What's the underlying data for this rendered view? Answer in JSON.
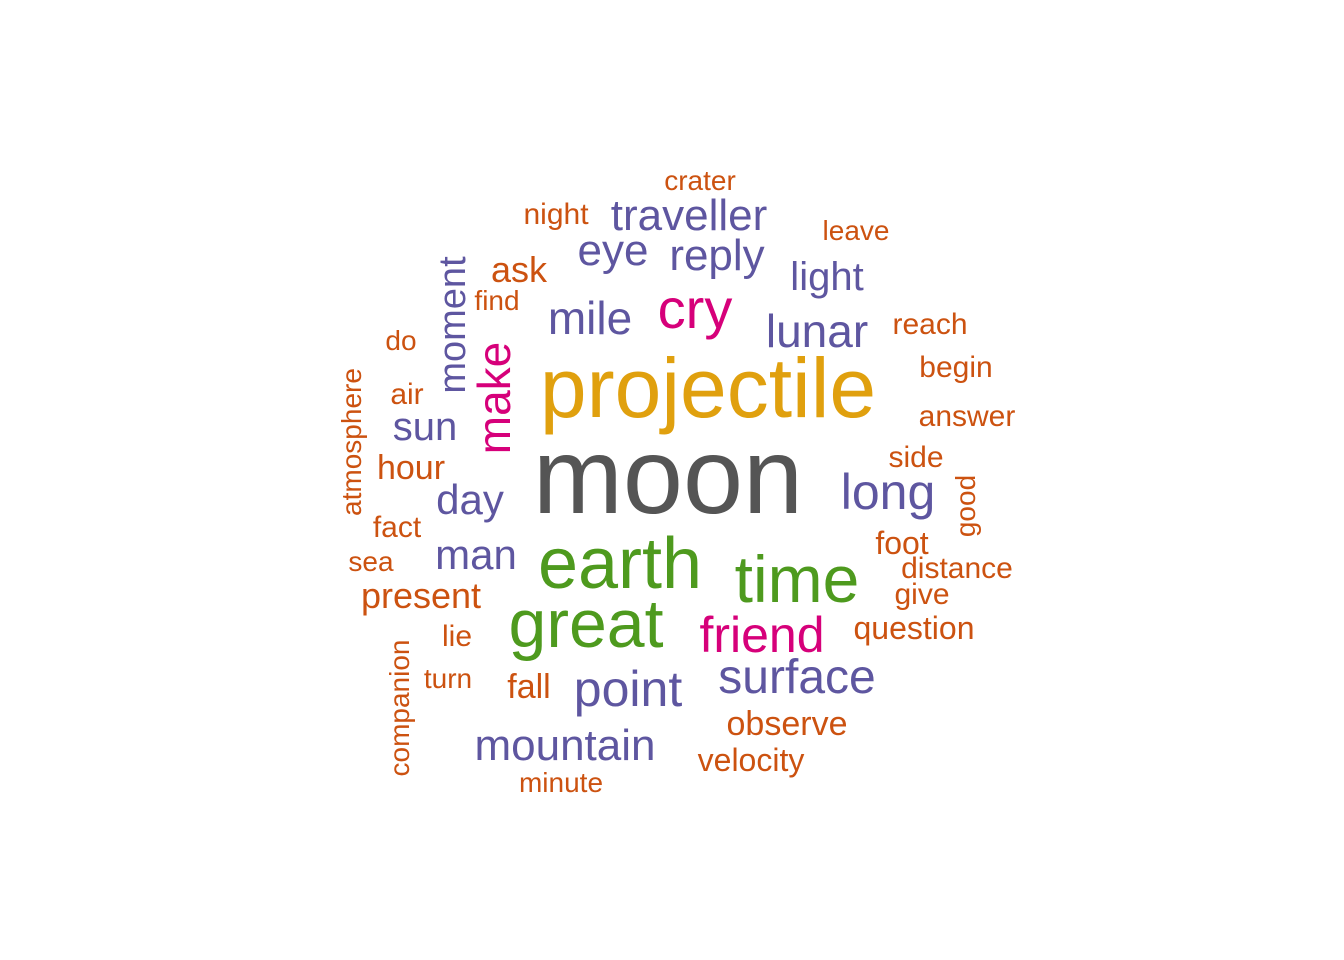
{
  "chart_data": {
    "type": "wordcloud",
    "palette": {
      "gray": "#555555",
      "gold": "#E0A00E",
      "green": "#4E9A1E",
      "magenta": "#D6007A",
      "purple": "#5E56A0",
      "orange": "#CC5210"
    },
    "words": [
      {
        "text": "moon",
        "color": "gray",
        "vertical": false
      },
      {
        "text": "projectile",
        "color": "gold",
        "vertical": false
      },
      {
        "text": "earth",
        "color": "green",
        "vertical": false
      },
      {
        "text": "great",
        "color": "green",
        "vertical": false
      },
      {
        "text": "time",
        "color": "green",
        "vertical": false
      },
      {
        "text": "cry",
        "color": "magenta",
        "vertical": false
      },
      {
        "text": "make",
        "color": "magenta",
        "vertical": true
      },
      {
        "text": "friend",
        "color": "magenta",
        "vertical": false
      },
      {
        "text": "traveller",
        "color": "purple",
        "vertical": false
      },
      {
        "text": "eye",
        "color": "purple",
        "vertical": false
      },
      {
        "text": "reply",
        "color": "purple",
        "vertical": false
      },
      {
        "text": "light",
        "color": "purple",
        "vertical": false
      },
      {
        "text": "mile",
        "color": "purple",
        "vertical": false
      },
      {
        "text": "lunar",
        "color": "purple",
        "vertical": false
      },
      {
        "text": "moment",
        "color": "purple",
        "vertical": true
      },
      {
        "text": "sun",
        "color": "purple",
        "vertical": false
      },
      {
        "text": "day",
        "color": "purple",
        "vertical": false
      },
      {
        "text": "long",
        "color": "purple",
        "vertical": false
      },
      {
        "text": "man",
        "color": "purple",
        "vertical": false
      },
      {
        "text": "surface",
        "color": "purple",
        "vertical": false
      },
      {
        "text": "point",
        "color": "purple",
        "vertical": false
      },
      {
        "text": "mountain",
        "color": "purple",
        "vertical": false
      },
      {
        "text": "crater",
        "color": "orange",
        "vertical": false
      },
      {
        "text": "night",
        "color": "orange",
        "vertical": false
      },
      {
        "text": "leave",
        "color": "orange",
        "vertical": false
      },
      {
        "text": "ask",
        "color": "orange",
        "vertical": false
      },
      {
        "text": "find",
        "color": "orange",
        "vertical": false
      },
      {
        "text": "do",
        "color": "orange",
        "vertical": false
      },
      {
        "text": "reach",
        "color": "orange",
        "vertical": false
      },
      {
        "text": "begin",
        "color": "orange",
        "vertical": false
      },
      {
        "text": "air",
        "color": "orange",
        "vertical": false
      },
      {
        "text": "atmosphere",
        "color": "orange",
        "vertical": true
      },
      {
        "text": "answer",
        "color": "orange",
        "vertical": false
      },
      {
        "text": "hour",
        "color": "orange",
        "vertical": false
      },
      {
        "text": "side",
        "color": "orange",
        "vertical": false
      },
      {
        "text": "good",
        "color": "orange",
        "vertical": true
      },
      {
        "text": "fact",
        "color": "orange",
        "vertical": false
      },
      {
        "text": "foot",
        "color": "orange",
        "vertical": false
      },
      {
        "text": "sea",
        "color": "orange",
        "vertical": false
      },
      {
        "text": "distance",
        "color": "orange",
        "vertical": false
      },
      {
        "text": "present",
        "color": "orange",
        "vertical": false
      },
      {
        "text": "give",
        "color": "orange",
        "vertical": false
      },
      {
        "text": "question",
        "color": "orange",
        "vertical": false
      },
      {
        "text": "lie",
        "color": "orange",
        "vertical": false
      },
      {
        "text": "companion",
        "color": "orange",
        "vertical": true
      },
      {
        "text": "turn",
        "color": "orange",
        "vertical": false
      },
      {
        "text": "fall",
        "color": "orange",
        "vertical": false
      },
      {
        "text": "observe",
        "color": "orange",
        "vertical": false
      },
      {
        "text": "velocity",
        "color": "orange",
        "vertical": false
      },
      {
        "text": "minute",
        "color": "orange",
        "vertical": false
      }
    ]
  }
}
